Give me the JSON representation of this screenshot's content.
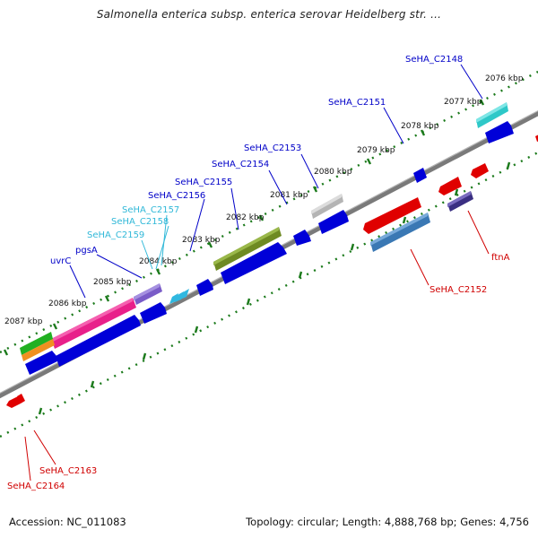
{
  "title": "Salmonella enterica subsp. enterica serovar Heidelberg str. ...",
  "footer": {
    "accession": "Accession: NC_011083",
    "summary": "Topology: circular; Length: 4,888,768 bp; Genes: 4,756"
  },
  "colors": {
    "backbone": "#7a7a7a",
    "tick": "#1b7a1b",
    "forward_cds": "#0000d8",
    "reverse_cds": "#e00000",
    "label_blue": "#0000c8",
    "label_cyan": "#30b8d8",
    "label_red": "#d00000"
  },
  "scale_labels": [
    "2076 kbp",
    "2077 kbp",
    "2078 kbp",
    "2079 kbp",
    "2080 kbp",
    "2081 kbp",
    "2082 kbp",
    "2083 kbp",
    "2084 kbp",
    "2085 kbp",
    "2086 kbp",
    "2087 kbp"
  ],
  "gene_labels": {
    "SeHA_C2148": "SeHA_C2148",
    "SeHA_C2151": "SeHA_C2151",
    "SeHA_C2153": "SeHA_C2153",
    "SeHA_C2154": "SeHA_C2154",
    "SeHA_C2155": "SeHA_C2155",
    "SeHA_C2156": "SeHA_C2156",
    "SeHA_C2157": "SeHA_C2157",
    "SeHA_C2158": "SeHA_C2158",
    "SeHA_C2159": "SeHA_C2159",
    "pgsA": "pgsA",
    "uvrC": "uvrC",
    "SeHA_C2152": "SeHA_C2152",
    "ftnA": "ftnA",
    "SeHA_C2163": "SeHA_C2163",
    "SeHA_C2164": "SeHA_C2164"
  }
}
